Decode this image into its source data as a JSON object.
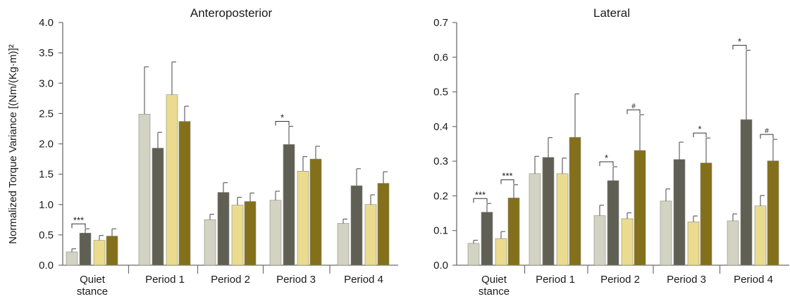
{
  "ylabel": "Normalized Torque Variance [(Nm/(Kg·m)]²",
  "colors": [
    "#d3d3c3",
    "#5f5f53",
    "#ebdb8f",
    "#84701a"
  ],
  "chart_data": [
    {
      "type": "bar",
      "title": "Anteroposterior",
      "categories": [
        "Quiet\nstance",
        "Period 1",
        "Period 2",
        "Period 3",
        "Period 4"
      ],
      "ylim": [
        0,
        4.0
      ],
      "yticks": [
        "0.0",
        "0.5",
        "1.0",
        "1.5",
        "2.0",
        "2.5",
        "3.0",
        "3.5",
        "4.0"
      ],
      "series": [
        {
          "values": [
            0.22,
            2.49,
            0.75,
            1.07,
            0.69
          ],
          "errors": [
            0.05,
            0.78,
            0.09,
            0.15,
            0.07
          ]
        },
        {
          "values": [
            0.53,
            1.93,
            1.2,
            1.99,
            1.31
          ],
          "errors": [
            0.07,
            0.26,
            0.16,
            0.3,
            0.28
          ]
        },
        {
          "values": [
            0.41,
            2.81,
            0.99,
            1.55,
            1.0
          ],
          "errors": [
            0.08,
            0.54,
            0.13,
            0.24,
            0.16
          ]
        },
        {
          "values": [
            0.48,
            2.37,
            1.05,
            1.75,
            1.35
          ],
          "errors": [
            0.12,
            0.25,
            0.14,
            0.21,
            0.19
          ]
        }
      ],
      "annotations": [
        {
          "category": 0,
          "pair": [
            0,
            1
          ],
          "label": "***",
          "small": false
        },
        {
          "category": 3,
          "pair": [
            0,
            1
          ],
          "label": "*",
          "small": false
        }
      ]
    },
    {
      "type": "bar",
      "title": "Lateral",
      "categories": [
        "Quiet\nstance",
        "Period 1",
        "Period 2",
        "Period 3",
        "Period 4"
      ],
      "ylim": [
        0,
        0.7
      ],
      "yticks": [
        "0.0",
        "0.1",
        "0.2",
        "0.3",
        "0.4",
        "0.5",
        "0.6",
        "0.7"
      ],
      "series": [
        {
          "values": [
            0.063,
            0.264,
            0.143,
            0.185,
            0.128
          ],
          "errors": [
            0.009,
            0.05,
            0.03,
            0.035,
            0.02
          ]
        },
        {
          "values": [
            0.153,
            0.311,
            0.244,
            0.305,
            0.42
          ],
          "errors": [
            0.025,
            0.057,
            0.04,
            0.05,
            0.2
          ]
        },
        {
          "values": [
            0.077,
            0.264,
            0.134,
            0.125,
            0.171
          ],
          "errors": [
            0.02,
            0.045,
            0.017,
            0.017,
            0.03
          ]
        },
        {
          "values": [
            0.194,
            0.369,
            0.331,
            0.295,
            0.301
          ],
          "errors": [
            0.038,
            0.125,
            0.103,
            0.072,
            0.062
          ]
        }
      ],
      "annotations": [
        {
          "category": 0,
          "pair": [
            0,
            1
          ],
          "label": "***",
          "small": false
        },
        {
          "category": 0,
          "pair": [
            2,
            3
          ],
          "label": "***",
          "small": false
        },
        {
          "category": 2,
          "pair": [
            0,
            1
          ],
          "label": "*",
          "small": false
        },
        {
          "category": 2,
          "pair": [
            2,
            3
          ],
          "label": "#",
          "small": true
        },
        {
          "category": 3,
          "pair": [
            2,
            3
          ],
          "label": "*",
          "small": false
        },
        {
          "category": 4,
          "pair": [
            0,
            1
          ],
          "label": "*",
          "small": false
        },
        {
          "category": 4,
          "pair": [
            2,
            3
          ],
          "label": "#",
          "small": true
        }
      ]
    }
  ]
}
